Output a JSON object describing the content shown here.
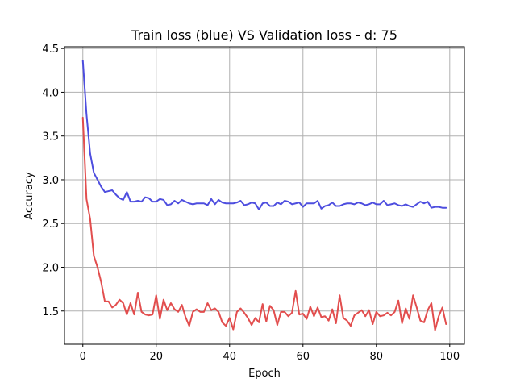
{
  "chart_data": {
    "type": "line",
    "title": "Train loss (blue) VS Validation loss - d: 75",
    "xlabel": "Epoch",
    "ylabel": "Accuracy",
    "xlim": [
      -5,
      104
    ],
    "ylim": [
      1.12,
      4.52
    ],
    "xticks": [
      0,
      20,
      40,
      60,
      80,
      100
    ],
    "yticks": [
      1.5,
      2.0,
      2.5,
      3.0,
      3.5,
      4.0,
      4.5
    ],
    "grid": true,
    "series": [
      {
        "color": "#4444dd",
        "x": [
          0,
          1,
          2,
          3,
          4,
          5,
          6,
          7,
          8,
          9,
          10,
          11,
          12,
          13,
          14,
          15,
          16,
          17,
          18,
          19,
          20,
          21,
          22,
          23,
          24,
          25,
          26,
          27,
          28,
          29,
          30,
          31,
          32,
          33,
          34,
          35,
          36,
          37,
          38,
          39,
          40,
          41,
          42,
          43,
          44,
          45,
          46,
          47,
          48,
          49,
          50,
          51,
          52,
          53,
          54,
          55,
          56,
          57,
          58,
          59,
          60,
          61,
          62,
          63,
          64,
          65,
          66,
          67,
          68,
          69,
          70,
          71,
          72,
          73,
          74,
          75,
          76,
          77,
          78,
          79,
          80,
          81,
          82,
          83,
          84,
          85,
          86,
          87,
          88,
          89,
          90,
          91,
          92,
          93,
          94,
          95,
          96,
          97,
          98,
          99
        ],
        "values": [
          4.36,
          3.75,
          3.3,
          3.08,
          3.0,
          2.92,
          2.86,
          2.87,
          2.88,
          2.83,
          2.79,
          2.77,
          2.86,
          2.75,
          2.75,
          2.76,
          2.75,
          2.8,
          2.79,
          2.75,
          2.75,
          2.78,
          2.77,
          2.71,
          2.72,
          2.76,
          2.73,
          2.77,
          2.75,
          2.73,
          2.72,
          2.73,
          2.73,
          2.73,
          2.71,
          2.78,
          2.72,
          2.77,
          2.74,
          2.73,
          2.73,
          2.73,
          2.74,
          2.76,
          2.71,
          2.72,
          2.74,
          2.73,
          2.66,
          2.73,
          2.74,
          2.7,
          2.7,
          2.74,
          2.72,
          2.76,
          2.75,
          2.72,
          2.73,
          2.74,
          2.69,
          2.73,
          2.73,
          2.73,
          2.76,
          2.67,
          2.7,
          2.71,
          2.74,
          2.7,
          2.7,
          2.72,
          2.73,
          2.73,
          2.72,
          2.74,
          2.73,
          2.71,
          2.72,
          2.74,
          2.72,
          2.72,
          2.76,
          2.71,
          2.72,
          2.73,
          2.71,
          2.7,
          2.72,
          2.7,
          2.69,
          2.72,
          2.75,
          2.73,
          2.75,
          2.68,
          2.69,
          2.69,
          2.68,
          2.68
        ]
      },
      {
        "color": "#e04444",
        "x": [
          0,
          1,
          2,
          3,
          4,
          5,
          6,
          7,
          8,
          9,
          10,
          11,
          12,
          13,
          14,
          15,
          16,
          17,
          18,
          19,
          20,
          21,
          22,
          23,
          24,
          25,
          26,
          27,
          28,
          29,
          30,
          31,
          32,
          33,
          34,
          35,
          36,
          37,
          38,
          39,
          40,
          41,
          42,
          43,
          44,
          45,
          46,
          47,
          48,
          49,
          50,
          51,
          52,
          53,
          54,
          55,
          56,
          57,
          58,
          59,
          60,
          61,
          62,
          63,
          64,
          65,
          66,
          67,
          68,
          69,
          70,
          71,
          72,
          73,
          74,
          75,
          76,
          77,
          78,
          79,
          80,
          81,
          82,
          83,
          84,
          85,
          86,
          87,
          88,
          89,
          90,
          91,
          92,
          93,
          94,
          95,
          96,
          97,
          98,
          99
        ],
        "values": [
          3.71,
          2.78,
          2.55,
          2.13,
          2.0,
          1.83,
          1.61,
          1.61,
          1.54,
          1.57,
          1.63,
          1.59,
          1.46,
          1.59,
          1.46,
          1.71,
          1.49,
          1.46,
          1.45,
          1.46,
          1.68,
          1.41,
          1.63,
          1.51,
          1.59,
          1.52,
          1.49,
          1.57,
          1.43,
          1.33,
          1.49,
          1.52,
          1.49,
          1.49,
          1.59,
          1.51,
          1.53,
          1.49,
          1.37,
          1.33,
          1.42,
          1.29,
          1.49,
          1.53,
          1.48,
          1.42,
          1.34,
          1.42,
          1.37,
          1.58,
          1.38,
          1.56,
          1.51,
          1.34,
          1.49,
          1.49,
          1.44,
          1.48,
          1.73,
          1.46,
          1.47,
          1.41,
          1.55,
          1.44,
          1.54,
          1.43,
          1.44,
          1.39,
          1.52,
          1.36,
          1.68,
          1.42,
          1.39,
          1.33,
          1.45,
          1.48,
          1.51,
          1.44,
          1.51,
          1.35,
          1.49,
          1.44,
          1.45,
          1.48,
          1.45,
          1.49,
          1.62,
          1.36,
          1.53,
          1.41,
          1.68,
          1.54,
          1.39,
          1.37,
          1.51,
          1.59,
          1.28,
          1.44,
          1.54,
          1.35
        ]
      }
    ]
  }
}
